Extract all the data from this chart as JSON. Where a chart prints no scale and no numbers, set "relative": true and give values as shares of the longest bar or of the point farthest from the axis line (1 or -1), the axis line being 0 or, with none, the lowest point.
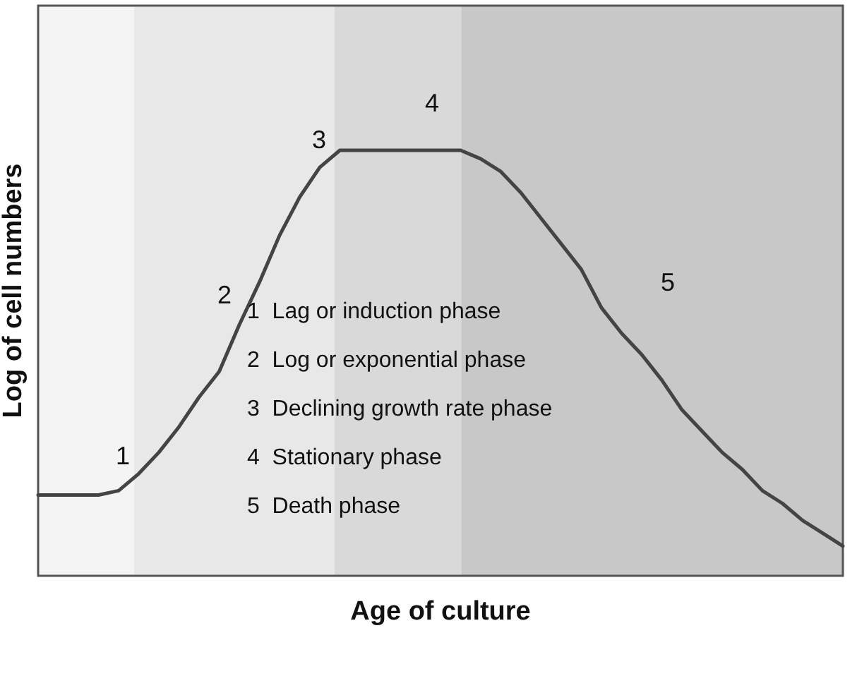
{
  "chart_data": {
    "type": "line",
    "relative": true,
    "xlabel": "Age of culture",
    "ylabel": "Log of cell numbers",
    "grid": false,
    "marker": "none",
    "line_style": "solid",
    "categories": [
      null,
      null,
      null,
      null,
      null,
      null,
      null,
      null,
      null,
      null,
      null,
      null,
      null,
      null,
      null,
      null,
      null,
      null,
      null,
      null,
      null,
      null,
      null,
      null,
      null,
      null,
      null,
      null,
      null,
      null,
      null,
      null,
      null,
      null,
      null,
      null,
      null,
      null,
      null,
      null,
      null
    ],
    "series": [
      {
        "color": "#444444",
        "values": [
          0.19,
          0.19,
          0.19,
          0.19,
          0.2,
          0.24,
          0.29,
          0.35,
          0.42,
          0.48,
          0.59,
          0.69,
          0.8,
          0.89,
          0.96,
          1,
          1,
          1,
          1,
          1,
          1,
          1,
          0.98,
          0.95,
          0.9,
          0.84,
          0.78,
          0.72,
          0.63,
          0.57,
          0.52,
          0.46,
          0.39,
          0.34,
          0.29,
          0.25,
          0.2,
          0.17,
          0.13,
          0.1,
          0.07
        ]
      }
    ],
    "annotations": [
      "1",
      "2",
      "3",
      "4",
      "5",
      "1  Lag or induction phase",
      "2  Log or exponential phase",
      "3  Declining growth rate phase",
      "4  Stationary phase",
      "5  Death phase"
    ]
  }
}
